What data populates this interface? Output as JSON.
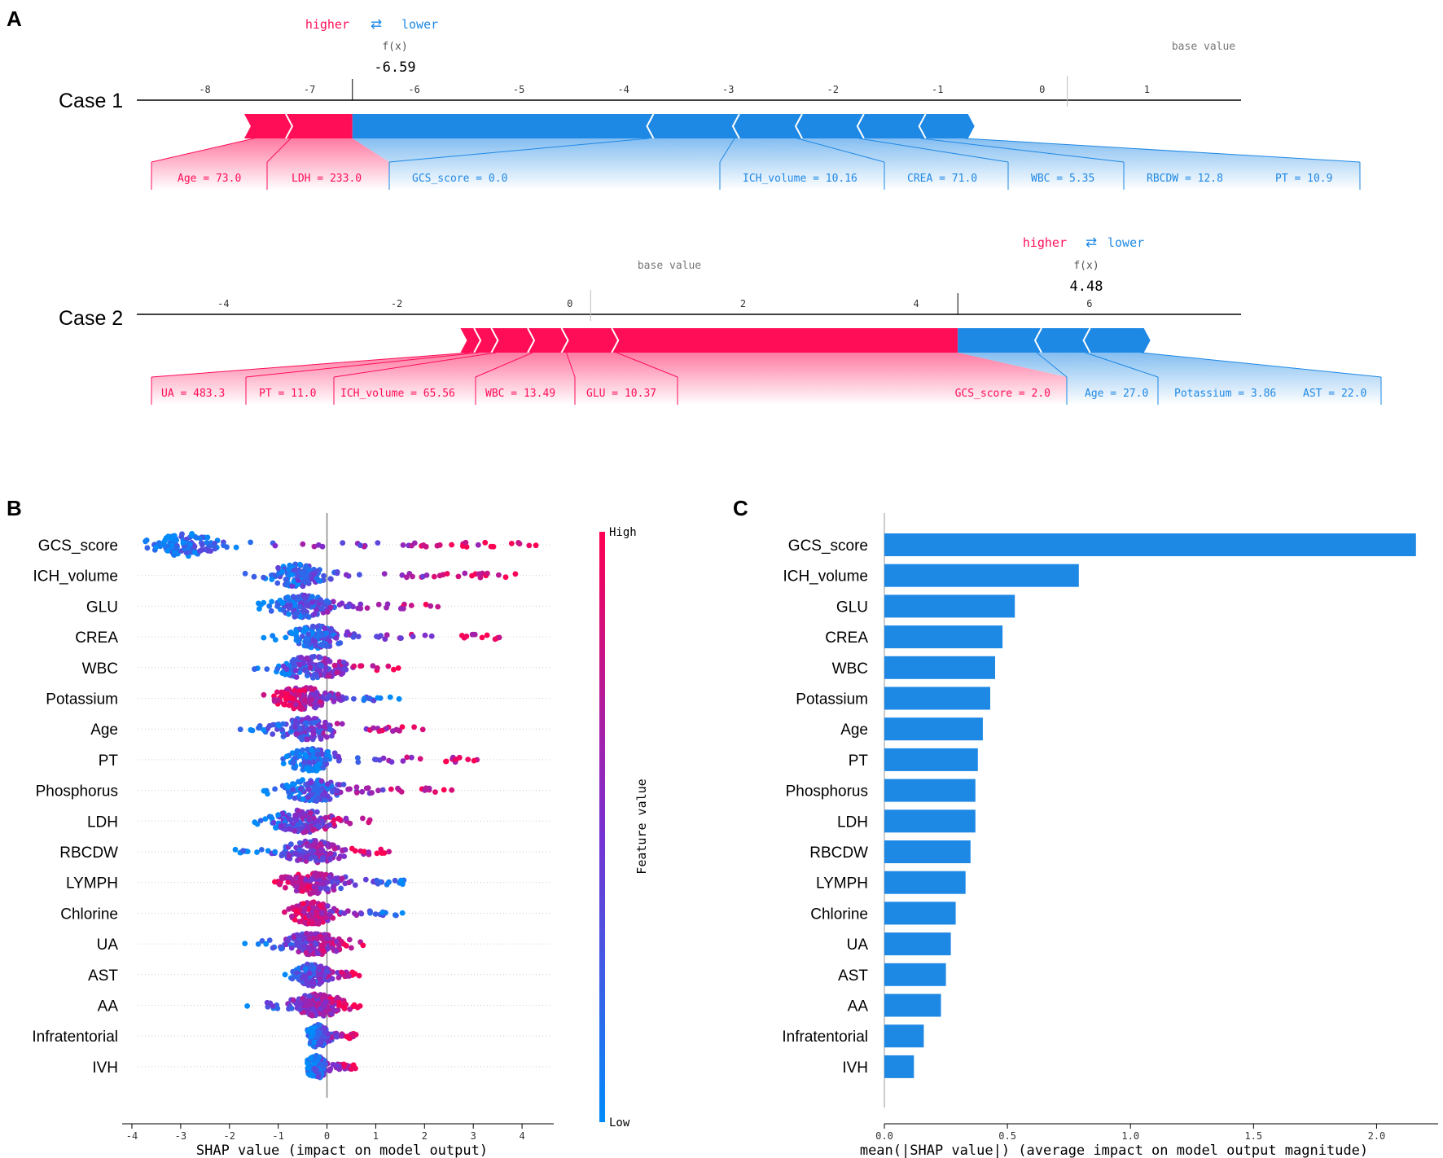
{
  "colors": {
    "pos": "#ff0d57",
    "neg": "#1e88e5",
    "arrow_neg": "#1e88e5",
    "bar": "#1e88e5",
    "grid": "#cccccc"
  },
  "panel_A": {
    "letter": "A",
    "cases": [
      {
        "label": "Case 1",
        "legend": {
          "higher": "higher",
          "arrow": "⇄",
          "lower": "lower"
        },
        "fx_label": "f(x)",
        "fx_value": "-6.59",
        "base_label": "base value",
        "axis_ticks": [
          "-8",
          "-7",
          "-6",
          "-5",
          "-4",
          "-3",
          "-2",
          "-1",
          "0",
          "1"
        ]
      },
      {
        "label": "Case 2",
        "legend": {
          "higher": "higher",
          "arrow": "⇄",
          "lower": "lower"
        },
        "fx_label": "f(x)",
        "fx_value": "4.48",
        "base_label": "base value",
        "axis_ticks": [
          "-4",
          "-2",
          "0",
          "2",
          "4",
          "6"
        ]
      }
    ]
  },
  "panel_B": {
    "letter": "B",
    "xlabel": "SHAP value (impact on model output)",
    "xticks": [
      "-4",
      "-3",
      "-2",
      "-1",
      "0",
      "1",
      "2",
      "3",
      "4"
    ],
    "colorbar": {
      "high": "High",
      "low": "Low",
      "title": "Feature value"
    }
  },
  "panel_C": {
    "letter": "C",
    "xlabel": "mean(|SHAP value|) (average impact on model output magnitude)",
    "xticks": [
      "0.0",
      "0.5",
      "1.0",
      "1.5",
      "2.0"
    ]
  },
  "chart_data": [
    {
      "type": "force_plot",
      "title": "Case 1",
      "output_value": -6.59,
      "base_value": 0.24,
      "xlim": [
        -8.65,
        1.9
      ],
      "features": [
        {
          "label": "Age = 73.0",
          "effect": 0.35,
          "direction": "higher"
        },
        {
          "label": "LDH = 233.0",
          "effect": 0.59,
          "direction": "higher"
        },
        {
          "label": "GCS_score = 0.0",
          "effect": -2.83,
          "direction": "lower"
        },
        {
          "label": "ICH_volume = 10.16",
          "effect": -0.82,
          "direction": "lower"
        },
        {
          "label": "CREA = 71.0",
          "effect": -0.6,
          "direction": "lower"
        },
        {
          "label": "WBC = 5.35",
          "effect": -0.59,
          "direction": "lower"
        },
        {
          "label": "RBCDW = 12.8",
          "effect": -0.59,
          "direction": "lower"
        },
        {
          "label": "PT = 10.9",
          "effect": -0.42,
          "direction": "lower"
        }
      ]
    },
    {
      "type": "force_plot",
      "title": "Case 2",
      "output_value": 4.48,
      "base_value": 0.24,
      "xlim": [
        -5.0,
        7.75
      ],
      "features": [
        {
          "label": "UA = 483.3",
          "effect": 0.1,
          "direction": "higher"
        },
        {
          "label": "PT = 11.0",
          "effect": 0.2,
          "direction": "higher"
        },
        {
          "label": "ICH_volume = 65.56",
          "effect": 0.42,
          "direction": "higher"
        },
        {
          "label": "WBC = 13.49",
          "effect": 0.39,
          "direction": "higher"
        },
        {
          "label": "GLU = 10.37",
          "effect": 0.58,
          "direction": "higher"
        },
        {
          "label": "GCS_score = 2.0",
          "effect": 3.94,
          "direction": "higher"
        },
        {
          "label": "Age = 27.0",
          "effect": -0.91,
          "direction": "lower"
        },
        {
          "label": "Potassium = 3.86",
          "effect": -0.56,
          "direction": "lower"
        },
        {
          "label": "AST = 22.0",
          "effect": -0.64,
          "direction": "lower"
        }
      ]
    },
    {
      "type": "scatter",
      "subtype": "beeswarm",
      "title": "",
      "xlabel": "SHAP value (impact on model output)",
      "ylabel": "",
      "xlim": [
        -4.2,
        4.75
      ],
      "features": [
        {
          "name": "GCS_score",
          "min": -3.8,
          "max": 4.3,
          "center": -2.9,
          "spread": 0.3,
          "low_side": "left"
        },
        {
          "name": "ICH_volume",
          "min": -1.9,
          "max": 3.9,
          "center": -0.6,
          "spread": 0.25,
          "low_side": "left"
        },
        {
          "name": "GLU",
          "min": -1.5,
          "max": 2.3,
          "center": -0.5,
          "spread": 0.25,
          "low_side": "left"
        },
        {
          "name": "CREA",
          "min": -1.3,
          "max": 3.6,
          "center": -0.2,
          "spread": 0.25,
          "low_side": "left"
        },
        {
          "name": "WBC",
          "min": -1.5,
          "max": 1.5,
          "center": -0.3,
          "spread": 0.3,
          "low_side": "left"
        },
        {
          "name": "Potassium",
          "min": -1.3,
          "max": 1.5,
          "center": -0.5,
          "spread": 0.25,
          "low_side": "right"
        },
        {
          "name": "Age",
          "min": -2.0,
          "max": 2.2,
          "center": -0.4,
          "spread": 0.3,
          "low_side": "left"
        },
        {
          "name": "PT",
          "min": -0.9,
          "max": 3.3,
          "center": -0.3,
          "spread": 0.25,
          "low_side": "left"
        },
        {
          "name": "Phosphorus",
          "min": -1.3,
          "max": 2.6,
          "center": -0.3,
          "spread": 0.3,
          "low_side": "left"
        },
        {
          "name": "LDH",
          "min": -1.7,
          "max": 1.0,
          "center": -0.5,
          "spread": 0.3,
          "low_side": "left"
        },
        {
          "name": "RBCDW",
          "min": -1.9,
          "max": 1.3,
          "center": -0.3,
          "spread": 0.3,
          "low_side": "left"
        },
        {
          "name": "LYMPH",
          "min": -1.2,
          "max": 1.7,
          "center": -0.3,
          "spread": 0.3,
          "low_side": "right"
        },
        {
          "name": "Chlorine",
          "min": -0.9,
          "max": 1.7,
          "center": -0.3,
          "spread": 0.2,
          "low_side": "right"
        },
        {
          "name": "UA",
          "min": -1.8,
          "max": 0.8,
          "center": -0.3,
          "spread": 0.3,
          "low_side": "left"
        },
        {
          "name": "AST",
          "min": -0.9,
          "max": 0.7,
          "center": -0.3,
          "spread": 0.15,
          "low_side": "left"
        },
        {
          "name": "AA",
          "min": -1.7,
          "max": 0.7,
          "center": -0.2,
          "spread": 0.25,
          "low_side": "left"
        },
        {
          "name": "Infratentorial",
          "min": -0.4,
          "max": 0.6,
          "center": -0.2,
          "spread": 0.1,
          "low_side": "left"
        },
        {
          "name": "IVH",
          "min": -0.4,
          "max": 0.6,
          "center": -0.2,
          "spread": 0.1,
          "low_side": "left"
        }
      ]
    },
    {
      "type": "bar",
      "orientation": "horizontal",
      "title": "",
      "xlabel": "mean(|SHAP value|) (average impact on model output magnitude)",
      "ylabel": "",
      "xlim": [
        0,
        2.25
      ],
      "categories": [
        "GCS_score",
        "ICH_volume",
        "GLU",
        "CREA",
        "WBC",
        "Potassium",
        "Age",
        "PT",
        "Phosphorus",
        "LDH",
        "RBCDW",
        "LYMPH",
        "Chlorine",
        "UA",
        "AST",
        "AA",
        "Infratentorial",
        "IVH"
      ],
      "values": [
        2.16,
        0.79,
        0.53,
        0.48,
        0.45,
        0.43,
        0.4,
        0.38,
        0.37,
        0.37,
        0.35,
        0.33,
        0.29,
        0.27,
        0.25,
        0.23,
        0.16,
        0.12
      ]
    }
  ]
}
